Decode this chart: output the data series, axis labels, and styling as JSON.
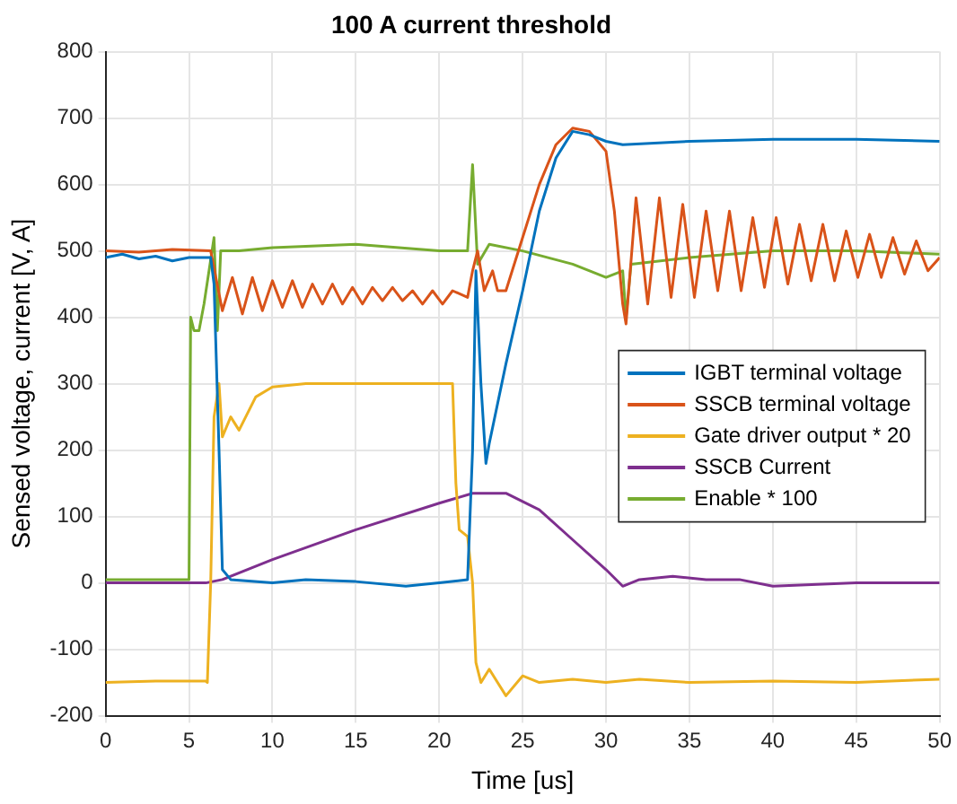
{
  "chart_data": {
    "type": "line",
    "title": "100 A current threshold",
    "xlabel": "Time [us]",
    "ylabel": "Sensed voltage, current [V, A]",
    "xlim": [
      0,
      50
    ],
    "xticks": [
      0,
      5,
      10,
      15,
      20,
      25,
      30,
      35,
      40,
      45,
      50
    ],
    "ylim": [
      -200,
      800
    ],
    "yticks": [
      -200,
      -100,
      0,
      100,
      200,
      300,
      400,
      500,
      600,
      700,
      800
    ],
    "grid": true,
    "legend": "right",
    "marker": "none",
    "line_style": "solid",
    "series": [
      {
        "name": "IGBT terminal voltage",
        "color": "#0072bd",
        "x": [
          0,
          1,
          2,
          3,
          4,
          5,
          6.3,
          6.5,
          6.8,
          7,
          7.5,
          10,
          12,
          15,
          18,
          20,
          21.7,
          22,
          22.2,
          22.5,
          22.8,
          23,
          24,
          25,
          26,
          27,
          28,
          29,
          30,
          31,
          35,
          40,
          45,
          50
        ],
        "values": [
          490,
          495,
          488,
          492,
          485,
          490,
          490,
          450,
          200,
          20,
          5,
          0,
          5,
          2,
          -5,
          0,
          5,
          200,
          470,
          300,
          180,
          210,
          330,
          440,
          560,
          640,
          680,
          675,
          665,
          660,
          665,
          668,
          668,
          665
        ]
      },
      {
        "name": "SSCB terminal voltage",
        "color": "#d95319",
        "x": [
          0,
          2,
          4,
          6.3,
          7,
          7.6,
          8.2,
          8.8,
          9.4,
          10,
          10.6,
          11.2,
          11.8,
          12.4,
          13,
          13.6,
          14.2,
          14.8,
          15.4,
          16,
          16.6,
          17.2,
          17.8,
          18.4,
          19,
          19.6,
          20.2,
          20.8,
          21.7,
          22,
          22.3,
          22.7,
          23.2,
          23.5,
          24,
          25,
          26,
          27,
          28,
          29,
          30,
          30.5,
          31,
          31.2,
          31.8,
          32.5,
          33.2,
          33.9,
          34.6,
          35.3,
          36,
          36.7,
          37.4,
          38.1,
          38.8,
          39.5,
          40.2,
          40.9,
          41.6,
          42.3,
          43,
          43.7,
          44.4,
          45.1,
          45.8,
          46.5,
          47.2,
          47.9,
          48.6,
          49.3,
          50
        ],
        "values": [
          500,
          498,
          502,
          500,
          410,
          460,
          405,
          460,
          410,
          455,
          415,
          455,
          415,
          450,
          420,
          450,
          420,
          445,
          420,
          445,
          425,
          445,
          425,
          440,
          420,
          440,
          420,
          440,
          430,
          470,
          500,
          440,
          470,
          440,
          440,
          520,
          600,
          660,
          685,
          680,
          650,
          560,
          420,
          390,
          580,
          420,
          580,
          430,
          570,
          430,
          560,
          440,
          560,
          440,
          550,
          445,
          550,
          450,
          540,
          455,
          540,
          455,
          530,
          460,
          525,
          460,
          520,
          465,
          515,
          470,
          490
        ]
      },
      {
        "name": "Gate driver output * 20",
        "color": "#edb120",
        "x": [
          0,
          3,
          6,
          6.1,
          6.3,
          6.5,
          6.8,
          7,
          7.5,
          8,
          9,
          10,
          12,
          15,
          18,
          20.8,
          21,
          21.2,
          21.7,
          22,
          22.2,
          22.5,
          23,
          24,
          25,
          26,
          28,
          30,
          32,
          35,
          40,
          45,
          50
        ],
        "values": [
          -150,
          -148,
          -148,
          -150,
          0,
          250,
          300,
          220,
          250,
          230,
          280,
          295,
          300,
          300,
          300,
          300,
          150,
          80,
          70,
          0,
          -120,
          -150,
          -130,
          -170,
          -140,
          -150,
          -145,
          -150,
          -145,
          -150,
          -148,
          -150,
          -145
        ]
      },
      {
        "name": "SSCB Current",
        "color": "#7e2f8e",
        "x": [
          0,
          6,
          7,
          10,
          15,
          20,
          22,
          24,
          26,
          28,
          30,
          31,
          32,
          34,
          36,
          38,
          40,
          45,
          50
        ],
        "values": [
          0,
          0,
          5,
          35,
          80,
          120,
          135,
          135,
          110,
          65,
          20,
          -5,
          5,
          10,
          5,
          5,
          -5,
          0,
          0
        ]
      },
      {
        "name": "Enable * 100",
        "color": "#77ac30",
        "x": [
          0,
          5,
          5.1,
          5.3,
          5.6,
          5.9,
          6.2,
          6.5,
          6.7,
          6.9,
          8,
          10,
          15,
          20,
          21.7,
          22,
          22.3,
          23,
          25,
          28,
          30,
          31,
          31.2,
          31.5,
          35,
          40,
          45,
          50
        ],
        "values": [
          5,
          5,
          400,
          380,
          380,
          420,
          470,
          520,
          380,
          500,
          500,
          505,
          510,
          500,
          500,
          630,
          480,
          510,
          500,
          480,
          460,
          470,
          400,
          480,
          490,
          500,
          500,
          495
        ]
      }
    ]
  }
}
